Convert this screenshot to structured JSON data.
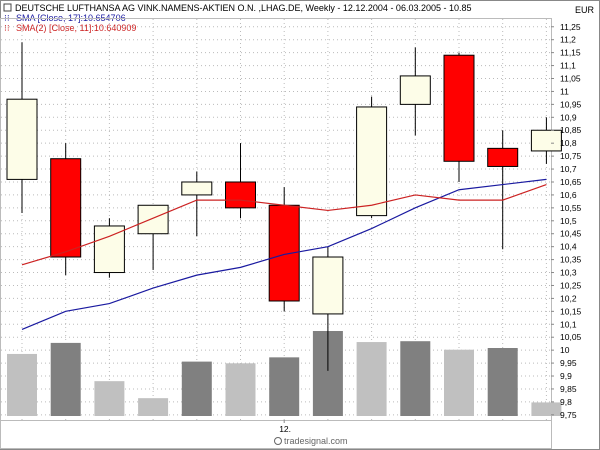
{
  "header": {
    "title": "DEUTSCHE LUFTHANSA AG VINK.NAMENS-AKTIEN O.N. ,LHAG.DE, Weekly - 12.12.2004 - 06.03.2005 - 10.85",
    "currency": "EUR"
  },
  "legend": [
    {
      "text": "SMA [Close, 17]:10.654706",
      "color": "#1a1aa0",
      "icon": "indicator-icon"
    },
    {
      "text": "SMA(2) [Close, 11]:10.640909",
      "color": "#cc2222",
      "icon": "indicator-icon"
    }
  ],
  "watermark": "tradesignal.com",
  "colors": {
    "up_fill": "#fdfde8",
    "down_fill": "#ff0000",
    "wick": "#000000",
    "sma17": "#1a1aa0",
    "sma11": "#cc2222",
    "volume_dark": "#808080",
    "volume_light": "#c0c0c0",
    "grid": "#bbbbbb"
  },
  "chart_data": {
    "type": "candlestick",
    "y_ticks": [
      "11,25",
      "11,2",
      "11,15",
      "11,1",
      "11,05",
      "11",
      "10,95",
      "10,9",
      "10,85",
      "10,8",
      "10,75",
      "10,7",
      "10,65",
      "10,6",
      "10,55",
      "10,5",
      "10,45",
      "10,4",
      "10,35",
      "10,3",
      "10,25",
      "10,2",
      "10,15",
      "10,1",
      "10,05",
      "10",
      "9,95",
      "9,9",
      "9,85",
      "9,8",
      "9,75"
    ],
    "ylim": [
      9.73,
      11.28
    ],
    "x_tick_labels": [
      {
        "index": 6,
        "label": "12."
      }
    ],
    "grid": true,
    "candles": [
      {
        "open": 10.66,
        "high": 11.19,
        "low": 10.53,
        "close": 10.97
      },
      {
        "open": 10.74,
        "high": 10.8,
        "low": 10.29,
        "close": 10.36
      },
      {
        "open": 10.3,
        "high": 10.51,
        "low": 10.28,
        "close": 10.48
      },
      {
        "open": 10.45,
        "high": 10.56,
        "low": 10.31,
        "close": 10.56
      },
      {
        "open": 10.6,
        "high": 10.69,
        "low": 10.44,
        "close": 10.65
      },
      {
        "open": 10.65,
        "high": 10.8,
        "low": 10.51,
        "close": 10.55
      },
      {
        "open": 10.56,
        "high": 10.63,
        "low": 10.15,
        "close": 10.19
      },
      {
        "open": 10.14,
        "high": 10.4,
        "low": 9.92,
        "close": 10.36
      },
      {
        "open": 10.52,
        "high": 10.98,
        "low": 10.51,
        "close": 10.94
      },
      {
        "open": 10.95,
        "high": 11.17,
        "low": 10.83,
        "close": 11.06
      },
      {
        "open": 11.14,
        "high": 11.15,
        "low": 10.65,
        "close": 10.73
      },
      {
        "open": 10.78,
        "high": 10.85,
        "low": 10.39,
        "close": 10.71
      },
      {
        "open": 10.77,
        "high": 10.9,
        "low": 10.72,
        "close": 10.85
      }
    ],
    "volume_relative": [
      0.73,
      0.86,
      0.41,
      0.21,
      0.64,
      0.62,
      0.69,
      1.0,
      0.87,
      0.88,
      0.78,
      0.8,
      0.16
    ],
    "volume_shade": [
      "light",
      "dark",
      "light",
      "light",
      "dark",
      "light",
      "dark",
      "dark",
      "light",
      "dark",
      "light",
      "dark",
      "light"
    ],
    "series": [
      {
        "name": "SMA [Close, 17]",
        "values": [
          10.08,
          10.15,
          10.18,
          10.24,
          10.29,
          10.32,
          10.37,
          10.4,
          10.47,
          10.55,
          10.62,
          10.64,
          10.66
        ]
      },
      {
        "name": "SMA(2) [Close, 11]",
        "values": [
          10.33,
          10.38,
          10.44,
          10.51,
          10.58,
          10.58,
          10.56,
          10.54,
          10.56,
          10.6,
          10.58,
          10.58,
          10.64
        ]
      }
    ]
  }
}
